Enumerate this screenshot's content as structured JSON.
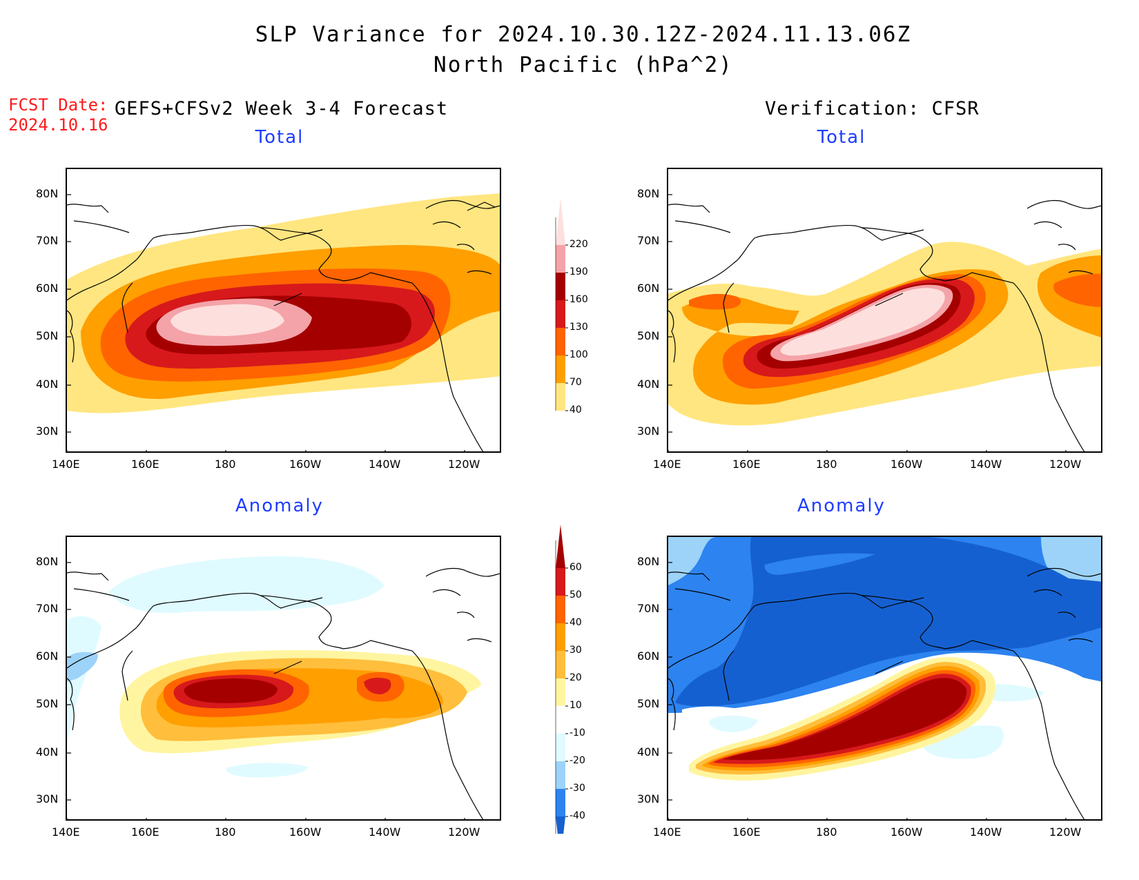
{
  "title": {
    "line1": "SLP Variance for 2024.10.30.12Z-2024.11.13.06Z",
    "line2": "North Pacific (hPa^2)"
  },
  "forecast_date": {
    "label": "FCST Date:",
    "value": "2024.10.16"
  },
  "columns": {
    "left": "GEFS+CFSv2 Week 3-4 Forecast",
    "right": "Verification: CFSR"
  },
  "panels": {
    "top_left_title": "Total",
    "top_right_title": "Total",
    "bottom_left_title": "Anomaly",
    "bottom_right_title": "Anomaly"
  },
  "axes": {
    "lat_labels": [
      "80N",
      "70N",
      "60N",
      "50N",
      "40N",
      "30N"
    ],
    "lon_labels": [
      "140E",
      "160E",
      "180",
      "160W",
      "140W",
      "120W"
    ]
  },
  "colorbars": {
    "total": {
      "levels": [
        "220",
        "190",
        "160",
        "130",
        "100",
        "70",
        "40"
      ],
      "colors": [
        "#fde0dd",
        "#f4a3a8",
        "#a50000",
        "#d7191c",
        "#ff6400",
        "#ff9f00",
        "#ffe680"
      ]
    },
    "anomaly": {
      "levels": [
        "60",
        "50",
        "40",
        "30",
        "20",
        "10",
        "-10",
        "-20",
        "-30",
        "-40"
      ],
      "colors": [
        "#a50000",
        "#d7191c",
        "#ff6400",
        "#ff9f00",
        "#ffbe3c",
        "#fff5a0",
        "#ffffff",
        "#e0fbff",
        "#9dd3f9",
        "#2d83ef",
        "#1560d0"
      ]
    }
  }
}
